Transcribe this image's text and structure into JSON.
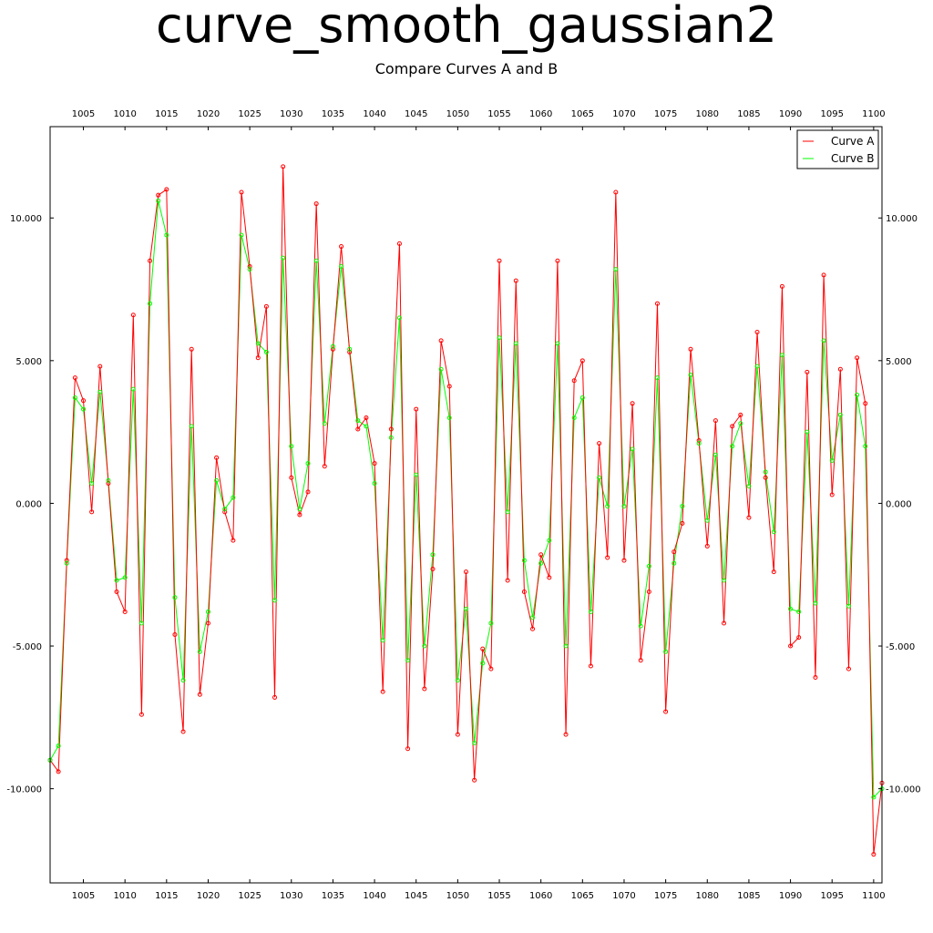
{
  "chart_data": {
    "type": "line",
    "title": "curve_smooth_gaussian2",
    "subtitle": "Compare Curves A and B",
    "xlabel": "",
    "ylabel": "",
    "xlim": [
      1001,
      1101
    ],
    "ylim": [
      -13.3,
      13.2
    ],
    "xticks": [
      1005,
      1010,
      1015,
      1020,
      1025,
      1030,
      1035,
      1040,
      1045,
      1050,
      1055,
      1060,
      1065,
      1070,
      1075,
      1080,
      1085,
      1090,
      1095,
      1100
    ],
    "yticks": [
      10,
      5,
      0,
      -5,
      -10
    ],
    "ytick_labels": [
      "10.000",
      "5.000",
      "0.000",
      "-5.000",
      "-10.000"
    ],
    "grid": false,
    "legend_position": "top-right",
    "x": [
      1001,
      1002,
      1003,
      1004,
      1005,
      1006,
      1007,
      1008,
      1009,
      1010,
      1011,
      1012,
      1013,
      1014,
      1015,
      1016,
      1017,
      1018,
      1019,
      1020,
      1021,
      1022,
      1023,
      1024,
      1025,
      1026,
      1027,
      1028,
      1029,
      1030,
      1031,
      1032,
      1033,
      1034,
      1035,
      1036,
      1037,
      1038,
      1039,
      1040,
      1041,
      1042,
      1043,
      1044,
      1045,
      1046,
      1047,
      1048,
      1049,
      1050,
      1051,
      1052,
      1053,
      1054,
      1055,
      1056,
      1057,
      1058,
      1059,
      1060,
      1061,
      1062,
      1063,
      1064,
      1065,
      1066,
      1067,
      1068,
      1069,
      1070,
      1071,
      1072,
      1073,
      1074,
      1075,
      1076,
      1077,
      1078,
      1079,
      1080,
      1081,
      1082,
      1083,
      1084,
      1085,
      1086,
      1087,
      1088,
      1089,
      1090,
      1091,
      1092,
      1093,
      1094,
      1095,
      1096,
      1097,
      1098,
      1099,
      1100,
      1101
    ],
    "series": [
      {
        "name": "Curve A",
        "color": "#ff0000",
        "values": [
          -9.0,
          -9.4,
          -2.0,
          4.4,
          3.6,
          -0.3,
          4.8,
          0.7,
          -3.1,
          -3.8,
          6.6,
          -7.4,
          8.5,
          10.8,
          11.0,
          -4.6,
          -8.0,
          5.4,
          -6.7,
          -4.2,
          1.6,
          -0.3,
          -1.3,
          10.9,
          8.3,
          5.1,
          6.9,
          -6.8,
          11.8,
          0.9,
          -0.4,
          0.4,
          10.5,
          1.3,
          5.4,
          9.0,
          5.3,
          2.6,
          3.0,
          1.4,
          -6.6,
          2.6,
          9.1,
          -8.6,
          3.3,
          -6.5,
          -2.3,
          5.7,
          4.1,
          -8.1,
          -2.4,
          -9.7,
          -5.1,
          -5.8,
          8.5,
          -2.7,
          7.8,
          -3.1,
          -4.4,
          -1.8,
          -2.6,
          8.5,
          -8.1,
          4.3,
          5.0,
          -5.7,
          2.1,
          -1.9,
          10.9,
          -2.0,
          3.5,
          -5.5,
          -3.1,
          7.0,
          -7.3,
          -1.7,
          -0.7,
          5.4,
          2.2,
          -1.5,
          2.9,
          -4.2,
          2.7,
          3.1,
          -0.5,
          6.0,
          0.9,
          -2.4,
          7.6,
          -5.0,
          -4.7,
          4.6,
          -6.1,
          8.0,
          0.3,
          4.7,
          -5.8,
          5.1,
          3.5,
          -12.3,
          -9.8
        ]
      },
      {
        "name": "Curve B",
        "color": "#00ff00",
        "values": [
          -9.0,
          -8.5,
          -2.1,
          3.7,
          3.3,
          0.7,
          3.9,
          0.8,
          -2.7,
          -2.6,
          4.0,
          -4.2,
          7.0,
          10.6,
          9.4,
          -3.3,
          -6.2,
          2.7,
          -5.2,
          -3.8,
          0.8,
          -0.2,
          0.2,
          9.4,
          8.2,
          5.6,
          5.3,
          -3.4,
          8.6,
          2.0,
          -0.2,
          1.4,
          8.5,
          2.8,
          5.5,
          8.3,
          5.4,
          2.9,
          2.7,
          0.7,
          -4.8,
          2.3,
          6.5,
          -5.5,
          1.0,
          -5.0,
          -1.8,
          4.7,
          3.0,
          -6.2,
          -3.7,
          -8.4,
          -5.6,
          -4.2,
          5.8,
          -0.3,
          5.6,
          -2.0,
          -4.0,
          -2.1,
          -1.3,
          5.6,
          -5.0,
          3.0,
          3.7,
          -3.8,
          0.9,
          -0.1,
          8.2,
          -0.1,
          1.9,
          -4.3,
          -2.2,
          4.4,
          -5.2,
          -2.1,
          -0.1,
          4.5,
          2.1,
          -0.6,
          1.7,
          -2.7,
          2.0,
          2.8,
          0.6,
          4.8,
          1.1,
          -1.0,
          5.2,
          -3.7,
          -3.8,
          2.5,
          -3.5,
          5.7,
          1.5,
          3.1,
          -3.6,
          3.8,
          2.0,
          -10.3,
          -10.0
        ]
      }
    ]
  }
}
